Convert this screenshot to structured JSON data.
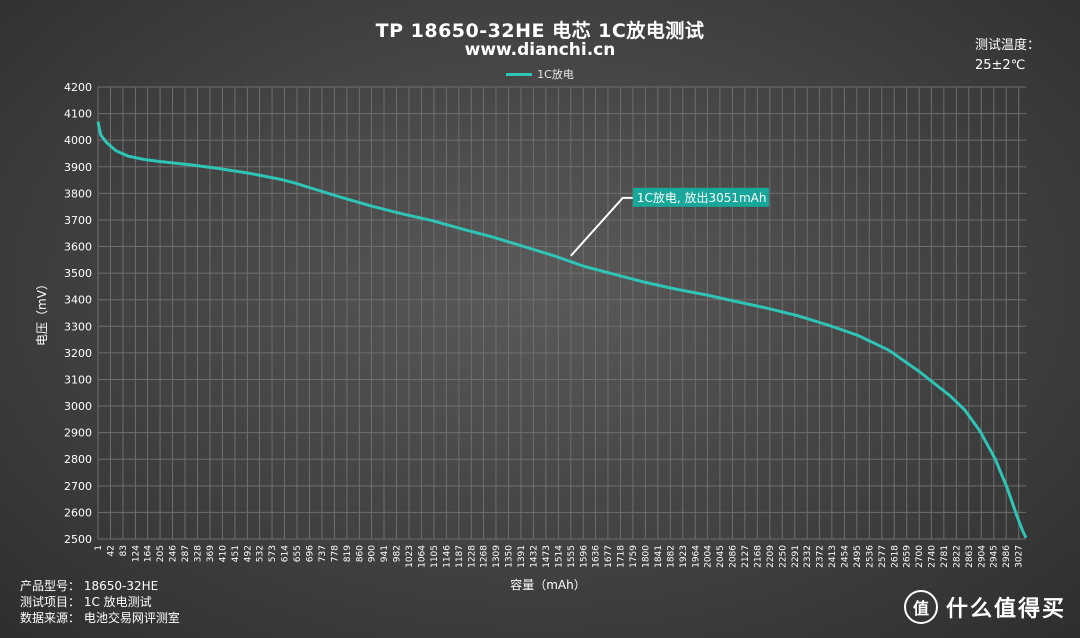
{
  "chart_data": {
    "type": "line",
    "title": "TP 18650-32HE 电芯 1C放电测试",
    "subtitle": "www.dianchi.cn",
    "xlabel": "容量（mAh）",
    "ylabel": "电压（mV）",
    "xlim": [
      1,
      3051
    ],
    "ylim": [
      2500,
      4200
    ],
    "y_ticks": [
      4200,
      4100,
      4000,
      3900,
      3800,
      3700,
      3600,
      3500,
      3400,
      3300,
      3200,
      3100,
      3000,
      2900,
      2800,
      2700,
      2600,
      2500
    ],
    "x_ticks": [
      1,
      42,
      83,
      124,
      164,
      205,
      246,
      287,
      328,
      369,
      410,
      451,
      492,
      532,
      573,
      614,
      655,
      696,
      737,
      778,
      819,
      860,
      900,
      941,
      982,
      1023,
      1064,
      1105,
      1146,
      1187,
      1228,
      1268,
      1309,
      1350,
      1391,
      1432,
      1473,
      1514,
      1555,
      1596,
      1636,
      1677,
      1718,
      1759,
      1800,
      1841,
      1882,
      1923,
      1964,
      2004,
      2045,
      2086,
      2127,
      2168,
      2209,
      2250,
      2291,
      2332,
      2372,
      2413,
      2454,
      2495,
      2536,
      2577,
      2618,
      2659,
      2700,
      2740,
      2781,
      2822,
      2863,
      2904,
      2945,
      2986,
      3027
    ],
    "grid": true,
    "legend": "top-center",
    "series": [
      {
        "name": "1C放电",
        "color": "#2ec4b6",
        "x": [
          1,
          10,
          30,
          60,
          100,
          150,
          200,
          300,
          400,
          500,
          600,
          650,
          700,
          800,
          900,
          1000,
          1100,
          1200,
          1300,
          1400,
          1500,
          1600,
          1700,
          1800,
          1900,
          2000,
          2100,
          2200,
          2300,
          2400,
          2500,
          2600,
          2700,
          2750,
          2800,
          2850,
          2900,
          2950,
          2990,
          3020,
          3040,
          3051
        ],
        "y": [
          4070,
          4020,
          3990,
          3960,
          3940,
          3928,
          3920,
          3908,
          3893,
          3875,
          3853,
          3838,
          3820,
          3785,
          3752,
          3723,
          3697,
          3665,
          3635,
          3600,
          3565,
          3525,
          3495,
          3465,
          3440,
          3418,
          3393,
          3368,
          3340,
          3305,
          3265,
          3210,
          3130,
          3085,
          3040,
          2985,
          2905,
          2800,
          2690,
          2590,
          2530,
          2505
        ]
      }
    ],
    "annotation": {
      "text": "1C放电, 放出3051mAh",
      "x": 1555,
      "y": 3565
    }
  },
  "header": {
    "temp_label": "测试温度：",
    "temp_value": "25±2℃"
  },
  "info": {
    "line1": "产品型号：  18650-32HE",
    "line2": "测试项目：  1C 放电测试",
    "line3": "数据来源：  电池交易网评测室"
  },
  "logo": {
    "circle": "值",
    "text": "什么值得买"
  }
}
